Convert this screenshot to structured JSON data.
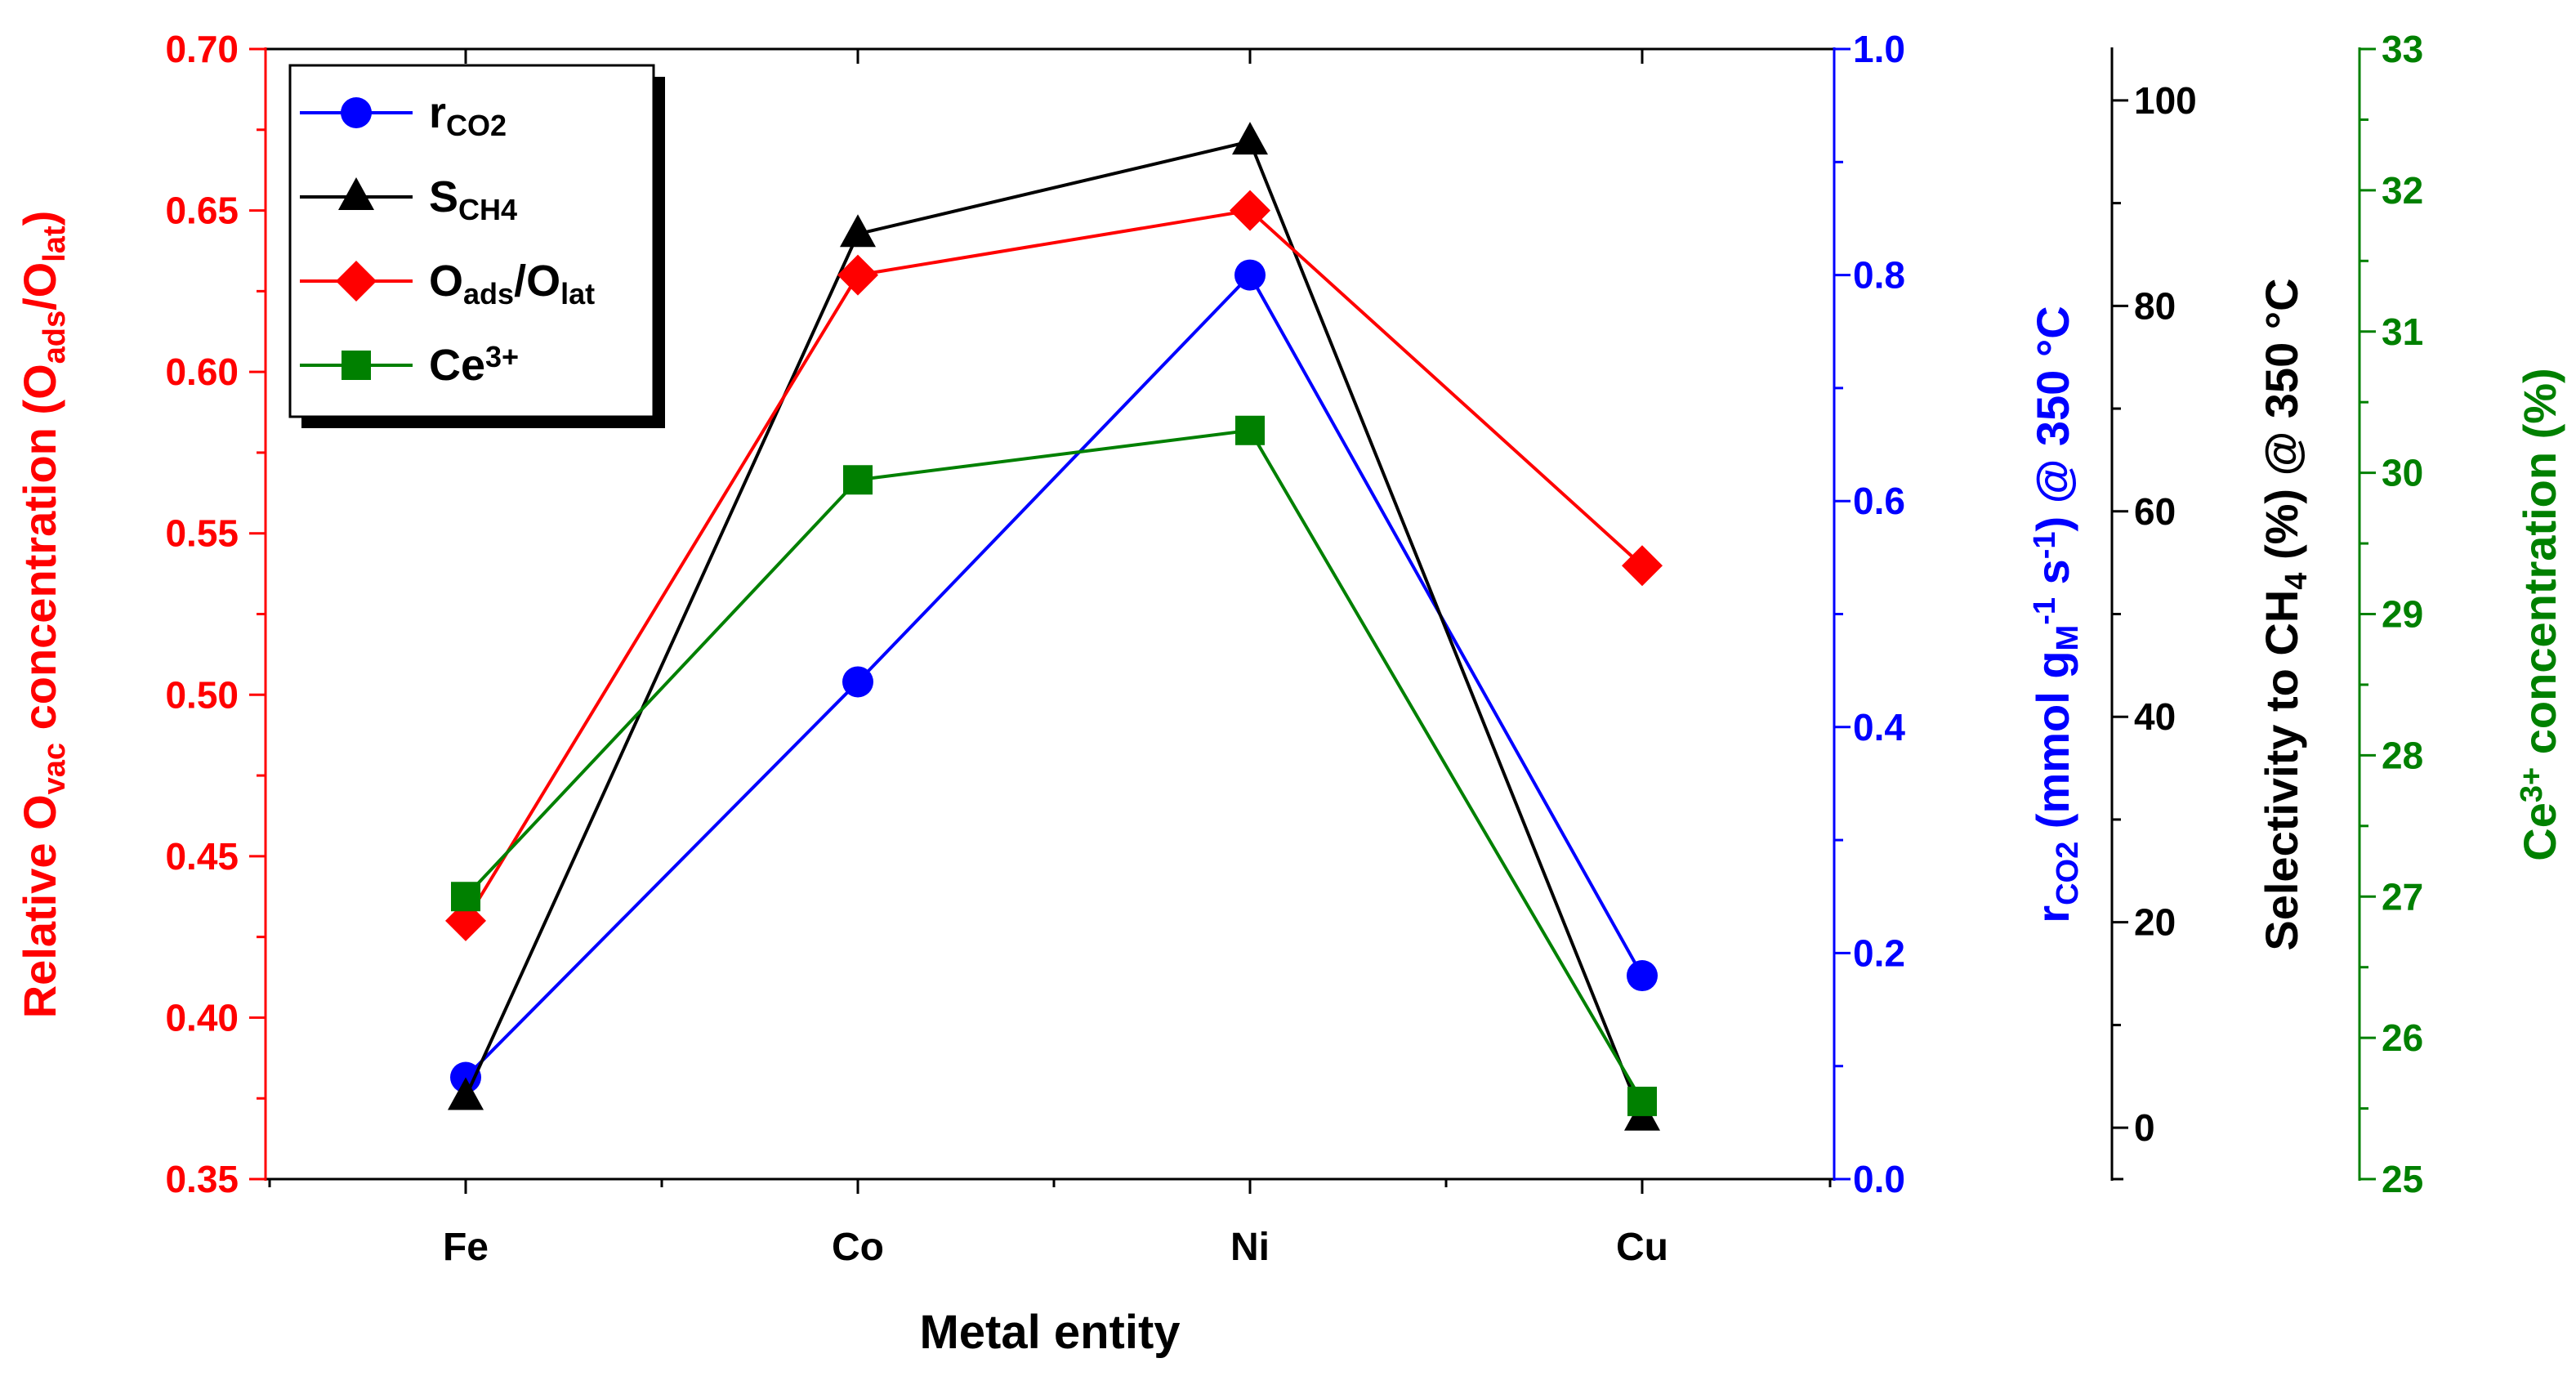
{
  "chart_data": {
    "type": "line",
    "categories": [
      "Fe",
      "Co",
      "Ni",
      "Cu"
    ],
    "xlabel": "Metal entity",
    "axes": {
      "left": {
        "label_parts": [
          "Relative O",
          "vac",
          " concentration (O",
          "ads",
          "/O",
          "lat",
          ")"
        ],
        "ylim": [
          0.35,
          0.7
        ],
        "ticks": [
          "0.35",
          "0.40",
          "0.45",
          "0.50",
          "0.55",
          "0.60",
          "0.65",
          "0.70"
        ],
        "color": "#ff0000"
      },
      "right1": {
        "label_parts": [
          "r",
          "CO2",
          " (mmol g",
          "M",
          "-1",
          " s",
          "-1",
          ") @ 350 °C"
        ],
        "ylim": [
          0.0,
          1.0
        ],
        "ticks": [
          "0.0",
          "0.2",
          "0.4",
          "0.6",
          "0.8",
          "1.0"
        ],
        "color": "#0000ff"
      },
      "right2": {
        "label_parts": [
          "Selectivity to CH",
          "4",
          " (%) @ 350 °C"
        ],
        "ylim": [
          -5,
          105
        ],
        "ticks": [
          "0",
          "20",
          "40",
          "60",
          "80",
          "100"
        ],
        "color": "#000000"
      },
      "right3": {
        "label_parts": [
          "Ce",
          "3+",
          " concentration (%)"
        ],
        "ylim": [
          25,
          33
        ],
        "ticks": [
          "25",
          "26",
          "27",
          "28",
          "29",
          "30",
          "31",
          "32",
          "33"
        ],
        "color": "#008000"
      }
    },
    "series": [
      {
        "name": "rCO2",
        "legend_parts": [
          "r",
          "CO2"
        ],
        "axis": "right1",
        "marker": "circle",
        "color": "#0000ff",
        "values": [
          0.09,
          0.44,
          0.8,
          0.18
        ]
      },
      {
        "name": "SCH4",
        "legend_parts": [
          "S",
          "CH4"
        ],
        "axis": "right2",
        "marker": "triangle",
        "color": "#000000",
        "values": [
          3,
          87,
          96,
          1
        ]
      },
      {
        "name": "Oads/Olat",
        "legend_parts": [
          "O",
          "ads",
          "/O",
          "lat"
        ],
        "axis": "left",
        "marker": "diamond",
        "color": "#ff0000",
        "values": [
          0.43,
          0.63,
          0.65,
          0.54
        ]
      },
      {
        "name": "Ce3+",
        "legend_parts": [
          "Ce",
          "3+"
        ],
        "axis": "right3",
        "marker": "square",
        "color": "#008000",
        "values": [
          27.0,
          29.95,
          30.3,
          25.55
        ]
      }
    ],
    "legend_position": "top-left"
  }
}
